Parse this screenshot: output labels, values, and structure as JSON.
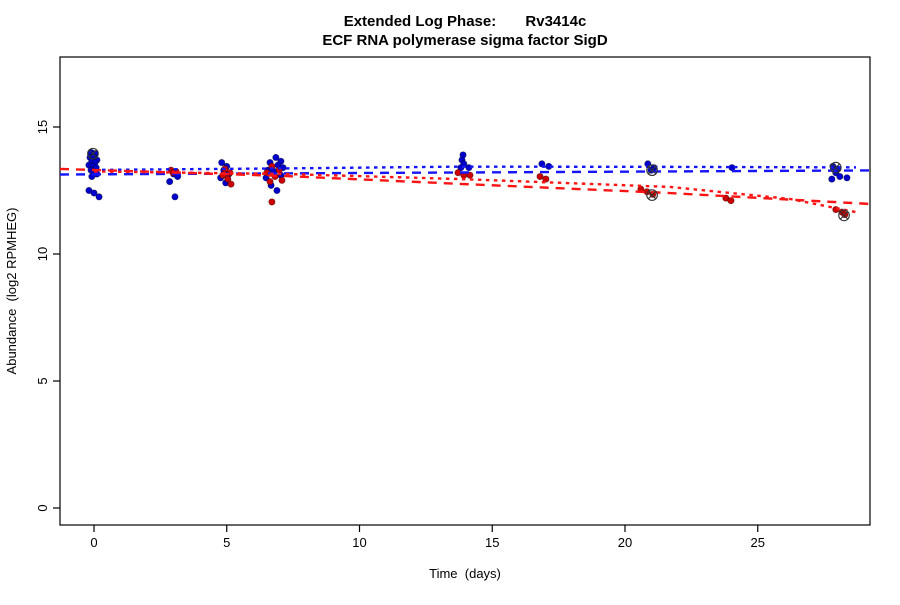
{
  "chart_data": {
    "type": "scatter",
    "title": "Extended Log Phase:       Rv3414c",
    "subtitle": "ECF RNA polymerase sigma factor SigD",
    "xlabel": "Time  (days)",
    "ylabel": "Abundance  (log2 RPMHEG)",
    "x_ticks": [
      0,
      5,
      10,
      15,
      20,
      25
    ],
    "y_ticks": [
      0,
      5,
      10,
      15
    ],
    "xlim": [
      -1.3,
      29.3
    ],
    "ylim": [
      -0.7,
      17.8
    ],
    "grid": false,
    "legend": "none",
    "colors": {
      "series1_point": "#0000CD",
      "series2_point": "#CC0000",
      "series1_line": "#1414FF",
      "series2_line": "#FF1414",
      "flagged_marker": "#333333",
      "axis": "#000000"
    },
    "series": [
      {
        "name": "condition-1-points",
        "type": "points",
        "marker": "filled-circle",
        "color": "#0000CD",
        "points": [
          [
            -0.11,
            14.0
          ],
          [
            0.04,
            13.95
          ],
          [
            -0.15,
            13.8
          ],
          [
            0.0,
            13.8
          ],
          [
            0.11,
            13.7
          ],
          [
            -0.08,
            13.65
          ],
          [
            0.04,
            13.6
          ],
          [
            -0.19,
            13.5
          ],
          [
            -0.04,
            13.45
          ],
          [
            0.08,
            13.4
          ],
          [
            -0.11,
            13.3
          ],
          [
            0.0,
            13.25
          ],
          [
            0.11,
            13.15
          ],
          [
            -0.08,
            13.05
          ],
          [
            -0.19,
            12.5
          ],
          [
            0.0,
            12.4
          ],
          [
            0.19,
            12.25
          ],
          [
            3.0,
            13.15
          ],
          [
            3.15,
            13.05
          ],
          [
            2.85,
            12.85
          ],
          [
            3.05,
            12.25
          ],
          [
            4.81,
            13.6
          ],
          [
            5.0,
            13.45
          ],
          [
            4.89,
            13.3
          ],
          [
            5.08,
            13.15
          ],
          [
            4.77,
            13.0
          ],
          [
            4.96,
            12.8
          ],
          [
            6.85,
            13.8
          ],
          [
            7.04,
            13.65
          ],
          [
            6.63,
            13.6
          ],
          [
            6.93,
            13.5
          ],
          [
            7.12,
            13.4
          ],
          [
            6.55,
            13.3
          ],
          [
            6.78,
            13.25
          ],
          [
            7.04,
            13.1
          ],
          [
            6.48,
            13.0
          ],
          [
            6.67,
            12.7
          ],
          [
            6.89,
            12.5
          ],
          [
            13.9,
            13.9
          ],
          [
            13.86,
            13.7
          ],
          [
            13.93,
            13.55
          ],
          [
            13.82,
            13.4
          ],
          [
            14.12,
            13.4
          ],
          [
            16.87,
            13.55
          ],
          [
            17.13,
            13.45
          ],
          [
            20.86,
            13.55
          ],
          [
            21.09,
            13.4
          ],
          [
            20.98,
            13.3
          ],
          [
            24.03,
            13.4
          ],
          [
            27.83,
            13.45
          ],
          [
            28.02,
            13.35
          ],
          [
            27.94,
            13.2
          ],
          [
            28.09,
            13.05
          ],
          [
            27.79,
            12.95
          ],
          [
            28.36,
            13.0
          ]
        ]
      },
      {
        "name": "condition-2-points",
        "type": "points",
        "marker": "filled-circle",
        "color": "#CC0000",
        "points": [
          [
            2.9,
            13.3
          ],
          [
            3.09,
            13.25
          ],
          [
            2.98,
            13.2
          ],
          [
            4.93,
            13.35
          ],
          [
            5.12,
            13.2
          ],
          [
            4.85,
            13.1
          ],
          [
            5.04,
            12.95
          ],
          [
            5.16,
            12.75
          ],
          [
            6.7,
            13.45
          ],
          [
            6.97,
            13.3
          ],
          [
            6.51,
            13.2
          ],
          [
            6.82,
            13.05
          ],
          [
            7.08,
            12.9
          ],
          [
            6.63,
            12.85
          ],
          [
            6.7,
            12.05
          ],
          [
            13.71,
            13.2
          ],
          [
            13.93,
            13.1
          ],
          [
            14.16,
            13.1
          ],
          [
            16.8,
            13.05
          ],
          [
            17.02,
            12.95
          ],
          [
            20.6,
            12.55
          ],
          [
            20.83,
            12.45
          ],
          [
            21.05,
            12.35
          ],
          [
            23.8,
            12.2
          ],
          [
            23.99,
            12.1
          ],
          [
            27.94,
            11.75
          ],
          [
            28.17,
            11.65
          ],
          [
            28.28,
            11.55
          ]
        ]
      },
      {
        "name": "condition-1-fit-dashed",
        "type": "line",
        "dash": "dashed",
        "color": "#1414FF",
        "x": [
          -1.28,
          29.22
        ],
        "y": [
          13.13,
          13.29
        ]
      },
      {
        "name": "condition-1-fit-dotted",
        "type": "line",
        "dash": "dotted",
        "color": "#1414FF",
        "x": [
          0,
          7.2,
          13.8,
          21.7,
          28.7
        ],
        "y": [
          13.31,
          13.37,
          13.44,
          13.43,
          13.41
        ]
      },
      {
        "name": "condition-2-fit-dashed",
        "type": "line",
        "dash": "dashed",
        "color": "#FF1414",
        "x": [
          -1.28,
          7.2,
          13.8,
          21.7,
          29.22
        ],
        "y": [
          13.35,
          13.07,
          12.76,
          12.4,
          11.97
        ]
      },
      {
        "name": "condition-2-fit-dotted",
        "type": "line",
        "dash": "dotted",
        "color": "#FF1414",
        "x": [
          0,
          7.2,
          13.8,
          21.7,
          26.2,
          28.7
        ],
        "y": [
          13.25,
          13.15,
          12.95,
          12.64,
          12.17,
          11.65
        ]
      },
      {
        "name": "flagged-points",
        "type": "points",
        "marker": "circle-x",
        "color": "none",
        "stroke": "#333333",
        "points": [
          [
            -0.04,
            13.95
          ],
          [
            21.02,
            13.3
          ],
          [
            21.02,
            12.32
          ],
          [
            27.94,
            13.4
          ],
          [
            28.25,
            11.52
          ]
        ]
      }
    ]
  }
}
